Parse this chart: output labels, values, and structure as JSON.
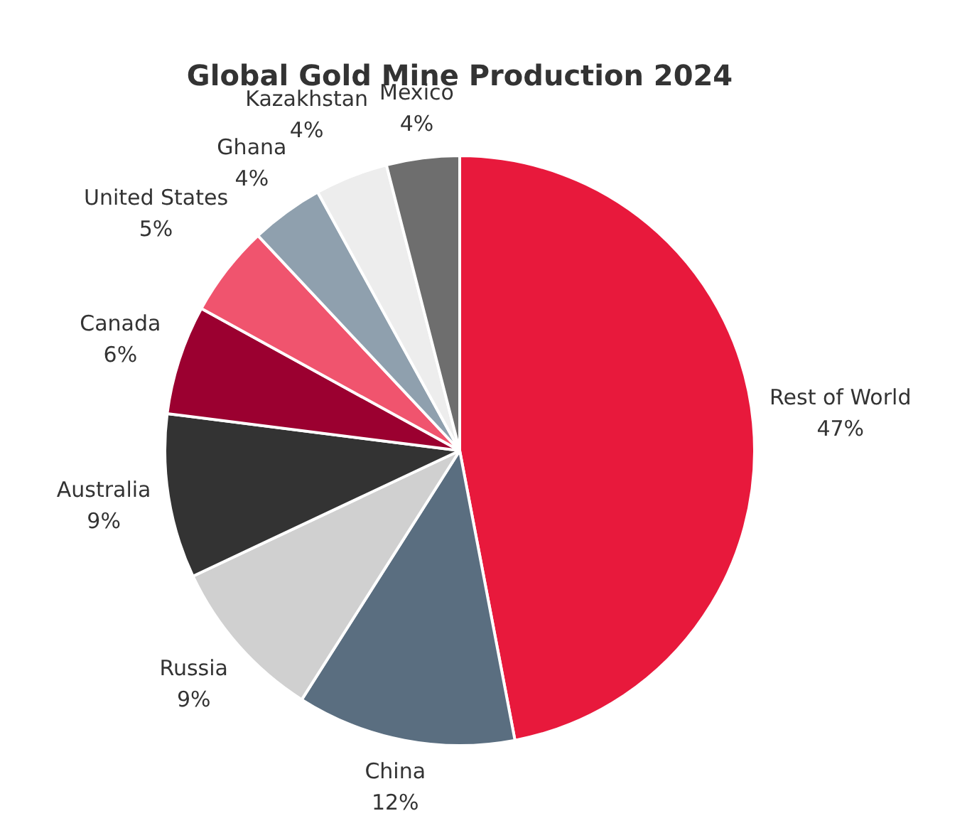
{
  "chart_data": {
    "type": "pie",
    "title": "Global Gold Mine Production 2024",
    "categories": [
      "Rest of World",
      "China",
      "Russia",
      "Australia",
      "Canada",
      "United States",
      "Ghana",
      "Kazakhstan",
      "Mexico"
    ],
    "values": [
      47,
      12,
      9,
      9,
      6,
      5,
      4,
      4,
      4
    ],
    "value_labels": [
      "47%",
      "12%",
      "9%",
      "9%",
      "6%",
      "5%",
      "4%",
      "4%",
      "4%"
    ],
    "colors": [
      "#e8193c",
      "#5a6e80",
      "#d0d0d0",
      "#333333",
      "#9b0030",
      "#f0546e",
      "#8fa0ae",
      "#ededed",
      "#6e6e6e"
    ],
    "legend": false
  }
}
